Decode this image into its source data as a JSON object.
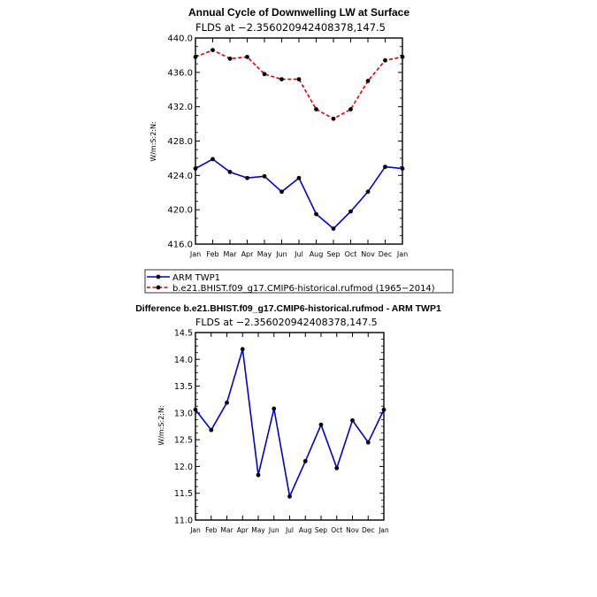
{
  "chart_data": [
    {
      "type": "line",
      "title": "Annual Cycle of Downwelling LW at Surface",
      "subtitle": "FLDS at −2.356020942408378,147.5",
      "ylabel": "W/m:S:2:N:",
      "xlabel": "",
      "categories": [
        "Jan",
        "Feb",
        "Mar",
        "Apr",
        "May",
        "Jun",
        "Jul",
        "Aug",
        "Sep",
        "Oct",
        "Nov",
        "Dec",
        "Jan"
      ],
      "ylim": [
        416.0,
        440.0
      ],
      "yticks": [
        "416.0",
        "420.0",
        "424.0",
        "428.0",
        "432.0",
        "436.0",
        "440.0"
      ],
      "grid": false,
      "series": [
        {
          "name": "ARM TWP1",
          "color": "#0000cc",
          "dash": "solid",
          "values": [
            424.8,
            425.9,
            424.4,
            423.7,
            423.9,
            422.1,
            423.7,
            419.5,
            417.8,
            419.8,
            422.1,
            425.0,
            424.8
          ]
        },
        {
          "name": "b.e21.BHIST.f09_g17.CMIP6-historical.rufmod (1965−2014)",
          "color": "#e00000",
          "dash": "dashed",
          "values": [
            437.8,
            438.6,
            437.6,
            437.8,
            435.8,
            435.2,
            435.2,
            431.7,
            430.6,
            431.7,
            435.0,
            437.4,
            437.8
          ]
        }
      ]
    },
    {
      "type": "line",
      "title": "Difference b.e21.BHIST.f09_g17.CMIP6-historical.rufmod - ARM TWP1",
      "subtitle": "FLDS at −2.356020942408378,147.5",
      "ylabel": "W/m:S:2:N:",
      "xlabel": "",
      "categories": [
        "Jan",
        "Feb",
        "Mar",
        "Apr",
        "May",
        "Jun",
        "Jul",
        "Aug",
        "Sep",
        "Oct",
        "Nov",
        "Dec",
        "Jan"
      ],
      "ylim": [
        11.0,
        14.5
      ],
      "yticks": [
        "11.0",
        "11.5",
        "12.0",
        "12.5",
        "13.0",
        "13.5",
        "14.0",
        "14.5"
      ],
      "grid": false,
      "series": [
        {
          "color": "#0000cc",
          "dash": "solid",
          "values": [
            13.06,
            12.68,
            13.19,
            14.19,
            11.84,
            13.08,
            11.44,
            12.1,
            12.78,
            11.97,
            12.86,
            12.45,
            13.06
          ]
        }
      ]
    }
  ]
}
